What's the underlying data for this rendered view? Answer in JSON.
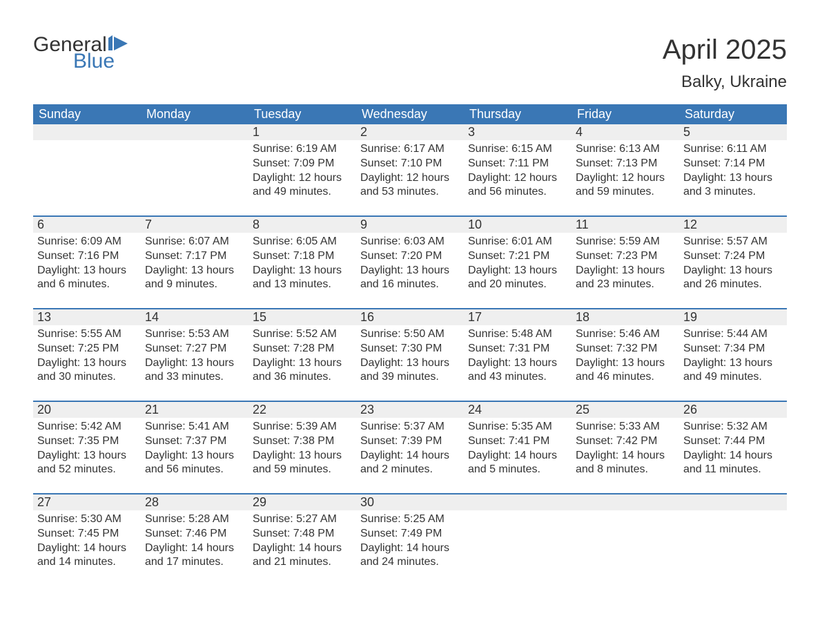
{
  "logo": {
    "text1": "General",
    "text2": "Blue",
    "icon_color": "#3a77b5"
  },
  "title": "April 2025",
  "location": "Balky, Ukraine",
  "colors": {
    "header_bg": "#3a77b5",
    "header_text": "#ffffff",
    "daynum_bg": "#efefef",
    "row_border": "#3a77b5",
    "text": "#333333",
    "background": "#ffffff"
  },
  "weekdays": [
    "Sunday",
    "Monday",
    "Tuesday",
    "Wednesday",
    "Thursday",
    "Friday",
    "Saturday"
  ],
  "weeks": [
    [
      {
        "n": "",
        "sunrise": "",
        "sunset": "",
        "daylight": ""
      },
      {
        "n": "",
        "sunrise": "",
        "sunset": "",
        "daylight": ""
      },
      {
        "n": "1",
        "sunrise": "Sunrise: 6:19 AM",
        "sunset": "Sunset: 7:09 PM",
        "daylight": "Daylight: 12 hours and 49 minutes."
      },
      {
        "n": "2",
        "sunrise": "Sunrise: 6:17 AM",
        "sunset": "Sunset: 7:10 PM",
        "daylight": "Daylight: 12 hours and 53 minutes."
      },
      {
        "n": "3",
        "sunrise": "Sunrise: 6:15 AM",
        "sunset": "Sunset: 7:11 PM",
        "daylight": "Daylight: 12 hours and 56 minutes."
      },
      {
        "n": "4",
        "sunrise": "Sunrise: 6:13 AM",
        "sunset": "Sunset: 7:13 PM",
        "daylight": "Daylight: 12 hours and 59 minutes."
      },
      {
        "n": "5",
        "sunrise": "Sunrise: 6:11 AM",
        "sunset": "Sunset: 7:14 PM",
        "daylight": "Daylight: 13 hours and 3 minutes."
      }
    ],
    [
      {
        "n": "6",
        "sunrise": "Sunrise: 6:09 AM",
        "sunset": "Sunset: 7:16 PM",
        "daylight": "Daylight: 13 hours and 6 minutes."
      },
      {
        "n": "7",
        "sunrise": "Sunrise: 6:07 AM",
        "sunset": "Sunset: 7:17 PM",
        "daylight": "Daylight: 13 hours and 9 minutes."
      },
      {
        "n": "8",
        "sunrise": "Sunrise: 6:05 AM",
        "sunset": "Sunset: 7:18 PM",
        "daylight": "Daylight: 13 hours and 13 minutes."
      },
      {
        "n": "9",
        "sunrise": "Sunrise: 6:03 AM",
        "sunset": "Sunset: 7:20 PM",
        "daylight": "Daylight: 13 hours and 16 minutes."
      },
      {
        "n": "10",
        "sunrise": "Sunrise: 6:01 AM",
        "sunset": "Sunset: 7:21 PM",
        "daylight": "Daylight: 13 hours and 20 minutes."
      },
      {
        "n": "11",
        "sunrise": "Sunrise: 5:59 AM",
        "sunset": "Sunset: 7:23 PM",
        "daylight": "Daylight: 13 hours and 23 minutes."
      },
      {
        "n": "12",
        "sunrise": "Sunrise: 5:57 AM",
        "sunset": "Sunset: 7:24 PM",
        "daylight": "Daylight: 13 hours and 26 minutes."
      }
    ],
    [
      {
        "n": "13",
        "sunrise": "Sunrise: 5:55 AM",
        "sunset": "Sunset: 7:25 PM",
        "daylight": "Daylight: 13 hours and 30 minutes."
      },
      {
        "n": "14",
        "sunrise": "Sunrise: 5:53 AM",
        "sunset": "Sunset: 7:27 PM",
        "daylight": "Daylight: 13 hours and 33 minutes."
      },
      {
        "n": "15",
        "sunrise": "Sunrise: 5:52 AM",
        "sunset": "Sunset: 7:28 PM",
        "daylight": "Daylight: 13 hours and 36 minutes."
      },
      {
        "n": "16",
        "sunrise": "Sunrise: 5:50 AM",
        "sunset": "Sunset: 7:30 PM",
        "daylight": "Daylight: 13 hours and 39 minutes."
      },
      {
        "n": "17",
        "sunrise": "Sunrise: 5:48 AM",
        "sunset": "Sunset: 7:31 PM",
        "daylight": "Daylight: 13 hours and 43 minutes."
      },
      {
        "n": "18",
        "sunrise": "Sunrise: 5:46 AM",
        "sunset": "Sunset: 7:32 PM",
        "daylight": "Daylight: 13 hours and 46 minutes."
      },
      {
        "n": "19",
        "sunrise": "Sunrise: 5:44 AM",
        "sunset": "Sunset: 7:34 PM",
        "daylight": "Daylight: 13 hours and 49 minutes."
      }
    ],
    [
      {
        "n": "20",
        "sunrise": "Sunrise: 5:42 AM",
        "sunset": "Sunset: 7:35 PM",
        "daylight": "Daylight: 13 hours and 52 minutes."
      },
      {
        "n": "21",
        "sunrise": "Sunrise: 5:41 AM",
        "sunset": "Sunset: 7:37 PM",
        "daylight": "Daylight: 13 hours and 56 minutes."
      },
      {
        "n": "22",
        "sunrise": "Sunrise: 5:39 AM",
        "sunset": "Sunset: 7:38 PM",
        "daylight": "Daylight: 13 hours and 59 minutes."
      },
      {
        "n": "23",
        "sunrise": "Sunrise: 5:37 AM",
        "sunset": "Sunset: 7:39 PM",
        "daylight": "Daylight: 14 hours and 2 minutes."
      },
      {
        "n": "24",
        "sunrise": "Sunrise: 5:35 AM",
        "sunset": "Sunset: 7:41 PM",
        "daylight": "Daylight: 14 hours and 5 minutes."
      },
      {
        "n": "25",
        "sunrise": "Sunrise: 5:33 AM",
        "sunset": "Sunset: 7:42 PM",
        "daylight": "Daylight: 14 hours and 8 minutes."
      },
      {
        "n": "26",
        "sunrise": "Sunrise: 5:32 AM",
        "sunset": "Sunset: 7:44 PM",
        "daylight": "Daylight: 14 hours and 11 minutes."
      }
    ],
    [
      {
        "n": "27",
        "sunrise": "Sunrise: 5:30 AM",
        "sunset": "Sunset: 7:45 PM",
        "daylight": "Daylight: 14 hours and 14 minutes."
      },
      {
        "n": "28",
        "sunrise": "Sunrise: 5:28 AM",
        "sunset": "Sunset: 7:46 PM",
        "daylight": "Daylight: 14 hours and 17 minutes."
      },
      {
        "n": "29",
        "sunrise": "Sunrise: 5:27 AM",
        "sunset": "Sunset: 7:48 PM",
        "daylight": "Daylight: 14 hours and 21 minutes."
      },
      {
        "n": "30",
        "sunrise": "Sunrise: 5:25 AM",
        "sunset": "Sunset: 7:49 PM",
        "daylight": "Daylight: 14 hours and 24 minutes."
      },
      {
        "n": "",
        "sunrise": "",
        "sunset": "",
        "daylight": ""
      },
      {
        "n": "",
        "sunrise": "",
        "sunset": "",
        "daylight": ""
      },
      {
        "n": "",
        "sunrise": "",
        "sunset": "",
        "daylight": ""
      }
    ]
  ]
}
